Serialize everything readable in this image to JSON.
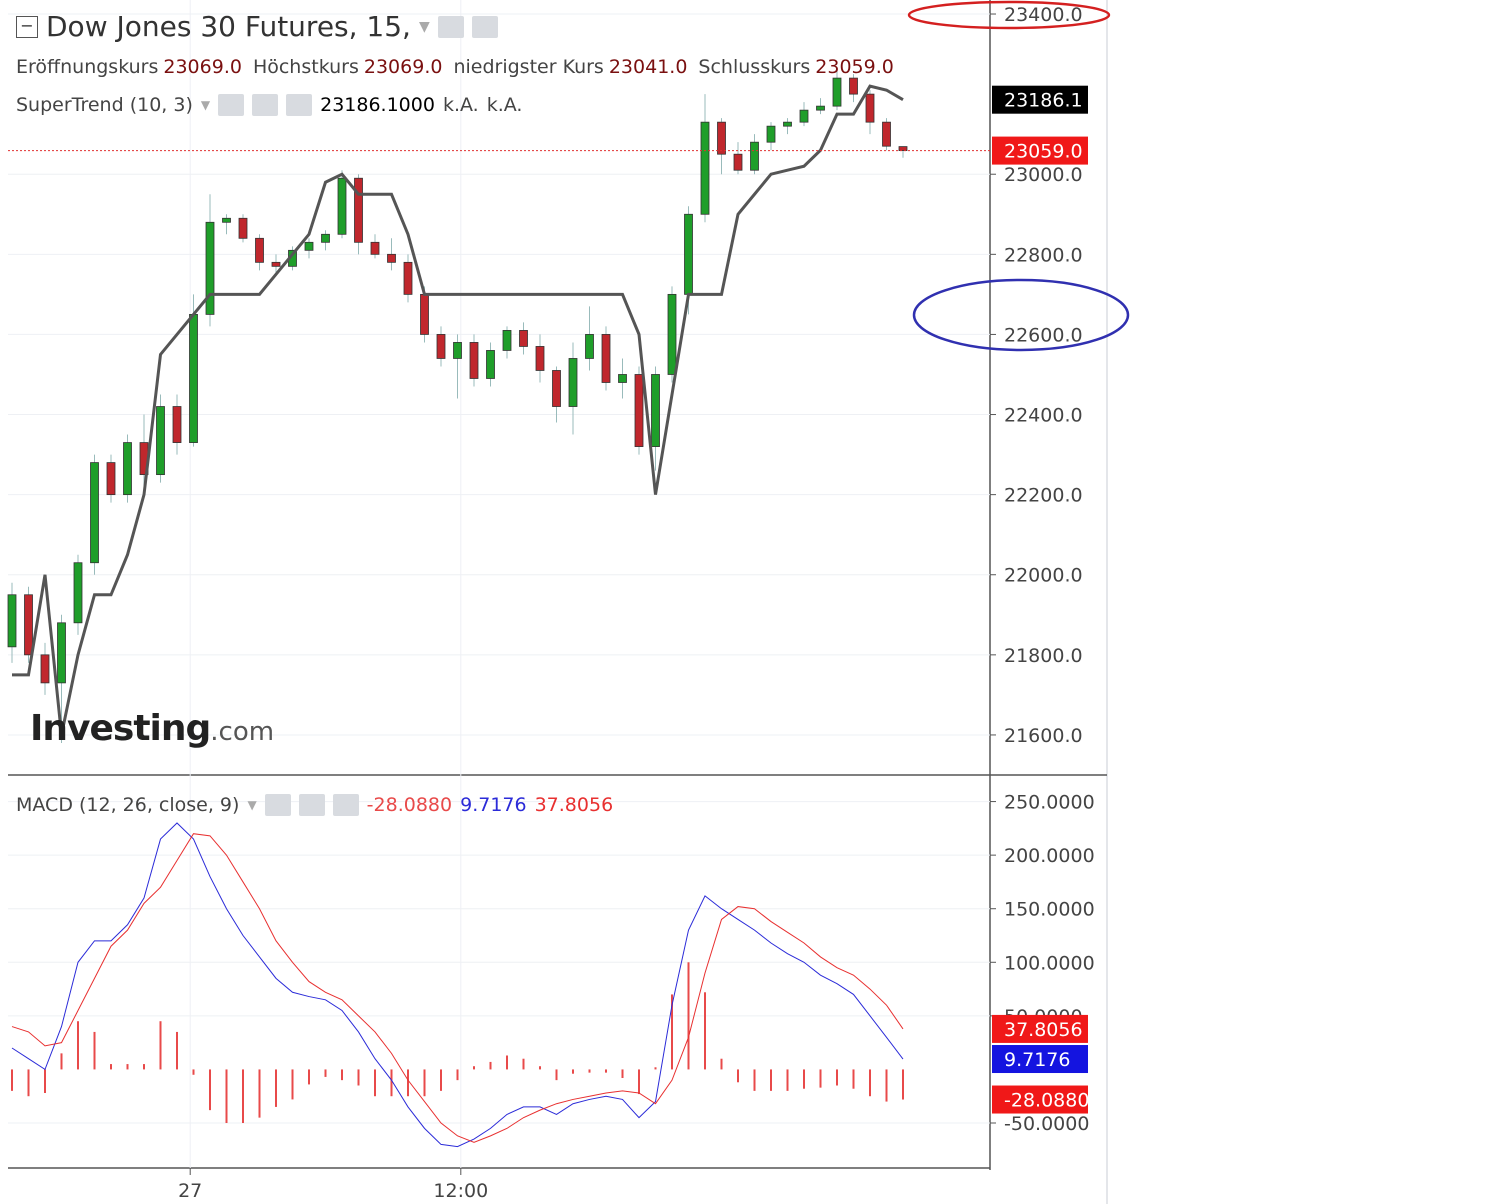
{
  "header": {
    "title": "Dow Jones 30 Futures, 15,",
    "ohlc": [
      {
        "label": "Eröffnungskurs",
        "value": "23069.0"
      },
      {
        "label": "Höchstkurs",
        "value": "23069.0"
      },
      {
        "label": "niedrigster Kurs",
        "value": "23041.0"
      },
      {
        "label": "Schlusskurs",
        "value": "23059.0"
      }
    ],
    "indicator": {
      "name": "SuperTrend (10, 3)",
      "value": "23186.1000",
      "extra": [
        "k.A.",
        "k.A."
      ]
    },
    "macd_legend": {
      "name": "MACD (12, 26, close, 9)"
    },
    "logo": {
      "main": "Investing",
      "suffix": ".com"
    }
  },
  "chart_data": [
    {
      "type": "candlestick",
      "up_color": "#1f9e2a",
      "down_color": "#c0272d",
      "ylim": [
        21500,
        23435
      ],
      "yticks": [
        {
          "value": 23400,
          "label": "23400.0"
        },
        {
          "value": 23000,
          "label": "23000.0"
        },
        {
          "value": 22800,
          "label": "22800.0"
        },
        {
          "value": 22600,
          "label": "22600.0"
        },
        {
          "value": 22400,
          "label": "22400.0"
        },
        {
          "value": 22200,
          "label": "22200.0"
        },
        {
          "value": 22000,
          "label": "22000.0"
        },
        {
          "value": 21800,
          "label": "21800.0"
        },
        {
          "value": 21600,
          "label": "21600.0"
        }
      ],
      "xticks": [
        {
          "value": 10.8,
          "label": "27"
        },
        {
          "value": 27.2,
          "label": "12:00"
        }
      ],
      "grid": true,
      "open": [
        21820,
        21950,
        21800,
        21730,
        21880,
        22030,
        22280,
        22200,
        22330,
        22250,
        22420,
        22330,
        22650,
        22880,
        22890,
        22840,
        22780,
        22770,
        22810,
        22830,
        22850,
        22990,
        22830,
        22800,
        22780,
        22700,
        22600,
        22540,
        22580,
        22490,
        22560,
        22610,
        22570,
        22510,
        22420,
        22540,
        22600,
        22480,
        22500,
        22320,
        22500,
        22700,
        22900,
        23130,
        23050,
        23010,
        23080,
        23120,
        23130,
        23160,
        23170,
        23240,
        23200,
        23130,
        23069
      ],
      "high": [
        21980,
        21970,
        21830,
        21900,
        22050,
        22300,
        22300,
        22350,
        22400,
        22450,
        22450,
        22700,
        22950,
        22900,
        22900,
        22850,
        22800,
        22820,
        22840,
        22860,
        23010,
        23000,
        22850,
        22840,
        22800,
        22720,
        22620,
        22600,
        22600,
        22580,
        22620,
        22630,
        22600,
        22520,
        22580,
        22670,
        22620,
        22540,
        22520,
        22520,
        22720,
        22920,
        23200,
        23140,
        23080,
        23100,
        23130,
        23140,
        23180,
        23190,
        23260,
        23250,
        23210,
        23140,
        23069
      ],
      "low": [
        21780,
        21780,
        21700,
        21580,
        21850,
        22000,
        22180,
        22180,
        22200,
        22230,
        22300,
        22320,
        22620,
        22850,
        22830,
        22760,
        22750,
        22760,
        22790,
        22810,
        22840,
        22800,
        22790,
        22760,
        22680,
        22580,
        22520,
        22440,
        22470,
        22470,
        22540,
        22550,
        22480,
        22380,
        22350,
        22510,
        22460,
        22440,
        22300,
        22260,
        22480,
        22650,
        22880,
        23000,
        23000,
        23000,
        23060,
        23100,
        23120,
        23150,
        23160,
        23180,
        23100,
        23060,
        23041
      ],
      "close": [
        21950,
        21800,
        21730,
        21880,
        22030,
        22280,
        22200,
        22330,
        22250,
        22420,
        22330,
        22650,
        22880,
        22890,
        22840,
        22780,
        22770,
        22810,
        22830,
        22850,
        22990,
        22830,
        22800,
        22780,
        22700,
        22600,
        22540,
        22580,
        22490,
        22560,
        22610,
        22570,
        22510,
        22420,
        22540,
        22600,
        22480,
        22500,
        22320,
        22500,
        22700,
        22900,
        23130,
        23050,
        23010,
        23080,
        23120,
        23130,
        23160,
        23170,
        23240,
        23200,
        23130,
        23070,
        23059
      ],
      "supertrend": {
        "color": "#555555",
        "values": [
          21750,
          21750,
          22000,
          21600,
          21800,
          21950,
          21950,
          22050,
          22200,
          22550,
          22600,
          22650,
          22700,
          22700,
          22700,
          22700,
          22750,
          22800,
          22850,
          22980,
          23000,
          22950,
          22950,
          22950,
          22850,
          22700,
          22700,
          22700,
          22700,
          22700,
          22700,
          22700,
          22700,
          22700,
          22700,
          22700,
          22700,
          22700,
          22600,
          22200,
          22450,
          22700,
          22700,
          22700,
          22900,
          22950,
          23000,
          23010,
          23020,
          23060,
          23150,
          23150,
          23220,
          23210,
          23186.1
        ]
      },
      "last_labels": {
        "supertrend": "23186.1",
        "close": "23059.0"
      }
    },
    {
      "type": "macd",
      "ylim": [
        -92,
        272
      ],
      "yticks": [
        {
          "value": 250,
          "label": "250.0000"
        },
        {
          "value": 200,
          "label": "200.0000"
        },
        {
          "value": 150,
          "label": "150.0000"
        },
        {
          "value": 100,
          "label": "100.0000"
        },
        {
          "value": 50,
          "label": "50.0000"
        },
        {
          "value": -50,
          "label": "-50.0000"
        }
      ],
      "grid": true,
      "series": [
        {
          "style": "histogram",
          "color": "#e84a4a",
          "values": [
            -20,
            -25,
            -22,
            15,
            45,
            35,
            5,
            5,
            5,
            45,
            35,
            -5,
            -38,
            -50,
            -50,
            -45,
            -35,
            -28,
            -14,
            -7,
            -10,
            -15,
            -25,
            -25,
            -25,
            -25,
            -20,
            -10,
            3,
            7,
            13,
            10,
            3,
            -10,
            -4,
            -3,
            -3,
            -8,
            -23,
            2,
            70,
            100,
            72,
            10,
            -12,
            -20,
            -20,
            -20,
            -18,
            -17,
            -15,
            -18,
            -25,
            -30,
            -28.088
          ],
          "value_label": "-28.0880"
        },
        {
          "style": "line",
          "color": "#2b2bd8",
          "values": [
            20,
            10,
            0,
            40,
            100,
            120,
            120,
            135,
            160,
            215,
            230,
            215,
            180,
            150,
            125,
            105,
            85,
            72,
            68,
            65,
            55,
            35,
            10,
            -10,
            -35,
            -55,
            -70,
            -72,
            -65,
            -55,
            -42,
            -35,
            -35,
            -42,
            -32,
            -28,
            -25,
            -28,
            -45,
            -30,
            60,
            130,
            162,
            150,
            140,
            130,
            118,
            108,
            100,
            88,
            80,
            70,
            50,
            30,
            9.7176
          ],
          "value_label": "9.7176"
        },
        {
          "style": "line",
          "color": "#e83030",
          "values": [
            40,
            35,
            22,
            25,
            55,
            85,
            115,
            130,
            155,
            170,
            195,
            220,
            218,
            200,
            175,
            150,
            120,
            100,
            82,
            72,
            65,
            50,
            35,
            15,
            -10,
            -30,
            -50,
            -62,
            -68,
            -62,
            -55,
            -45,
            -38,
            -32,
            -28,
            -25,
            -22,
            -20,
            -22,
            -32,
            -10,
            30,
            90,
            140,
            152,
            150,
            138,
            128,
            118,
            105,
            95,
            88,
            75,
            60,
            37.8056
          ],
          "value_label": "37.8056"
        }
      ]
    }
  ]
}
